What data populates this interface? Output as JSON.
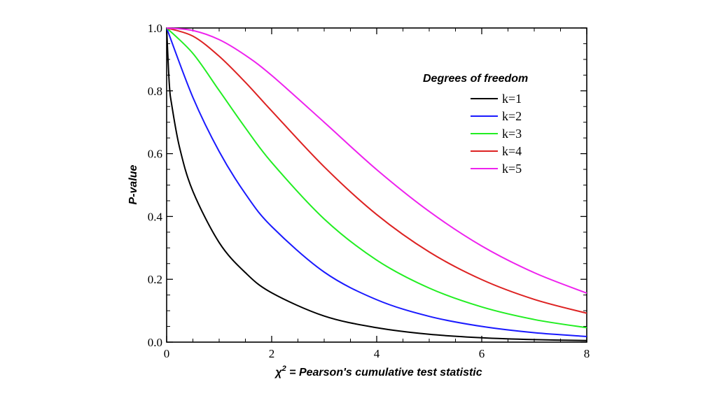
{
  "chart_data": {
    "type": "line",
    "xlabel": "χ² = Pearson's cumulative test statistic",
    "xlabel_main": "χ",
    "xlabel_sup": "2",
    "xlabel_rest": " = Pearson's cumulative test statistic",
    "ylabel": "P-value",
    "xlim": [
      0,
      8
    ],
    "ylim": [
      0,
      1
    ],
    "x_ticks": [
      "0",
      "2",
      "4",
      "6",
      "8"
    ],
    "y_ticks": [
      "0.0",
      "0.2",
      "0.4",
      "0.6",
      "0.8",
      "1.0"
    ],
    "grid": false,
    "legend": {
      "title": "Degrees of freedom",
      "placement": "top-right"
    },
    "series": [
      {
        "name": "k=1",
        "color": "#000000",
        "x": [
          0.0,
          0.05,
          0.1,
          0.25,
          0.5,
          1,
          1.5,
          2,
          3,
          4,
          5,
          6,
          7,
          8
        ],
        "y": [
          1.0,
          0.823,
          0.752,
          0.617,
          0.48,
          0.317,
          0.221,
          0.157,
          0.083,
          0.046,
          0.025,
          0.014,
          0.008,
          0.005
        ]
      },
      {
        "name": "k=2",
        "color": "#1a1aff",
        "x": [
          0,
          0.5,
          1,
          1.5,
          2,
          3,
          4,
          5,
          6,
          7,
          8
        ],
        "y": [
          1.0,
          0.779,
          0.607,
          0.472,
          0.368,
          0.223,
          0.135,
          0.082,
          0.05,
          0.03,
          0.018
        ]
      },
      {
        "name": "k=3",
        "color": "#22ee22",
        "x": [
          0,
          0.5,
          1,
          1.5,
          2,
          3,
          4,
          5,
          6,
          7,
          8
        ],
        "y": [
          1.0,
          0.919,
          0.801,
          0.682,
          0.572,
          0.392,
          0.261,
          0.172,
          0.112,
          0.072,
          0.046
        ]
      },
      {
        "name": "k=4",
        "color": "#dd2222",
        "x": [
          0,
          0.5,
          1,
          1.5,
          2,
          3,
          4,
          5,
          6,
          7,
          8
        ],
        "y": [
          1.0,
          0.974,
          0.91,
          0.827,
          0.736,
          0.558,
          0.406,
          0.287,
          0.199,
          0.136,
          0.092
        ]
      },
      {
        "name": "k=5",
        "color": "#ee22ee",
        "x": [
          0,
          0.5,
          1,
          1.5,
          2,
          3,
          4,
          5,
          6,
          7,
          8
        ],
        "y": [
          1.0,
          0.992,
          0.963,
          0.913,
          0.849,
          0.7,
          0.549,
          0.416,
          0.306,
          0.221,
          0.156
        ]
      }
    ]
  }
}
